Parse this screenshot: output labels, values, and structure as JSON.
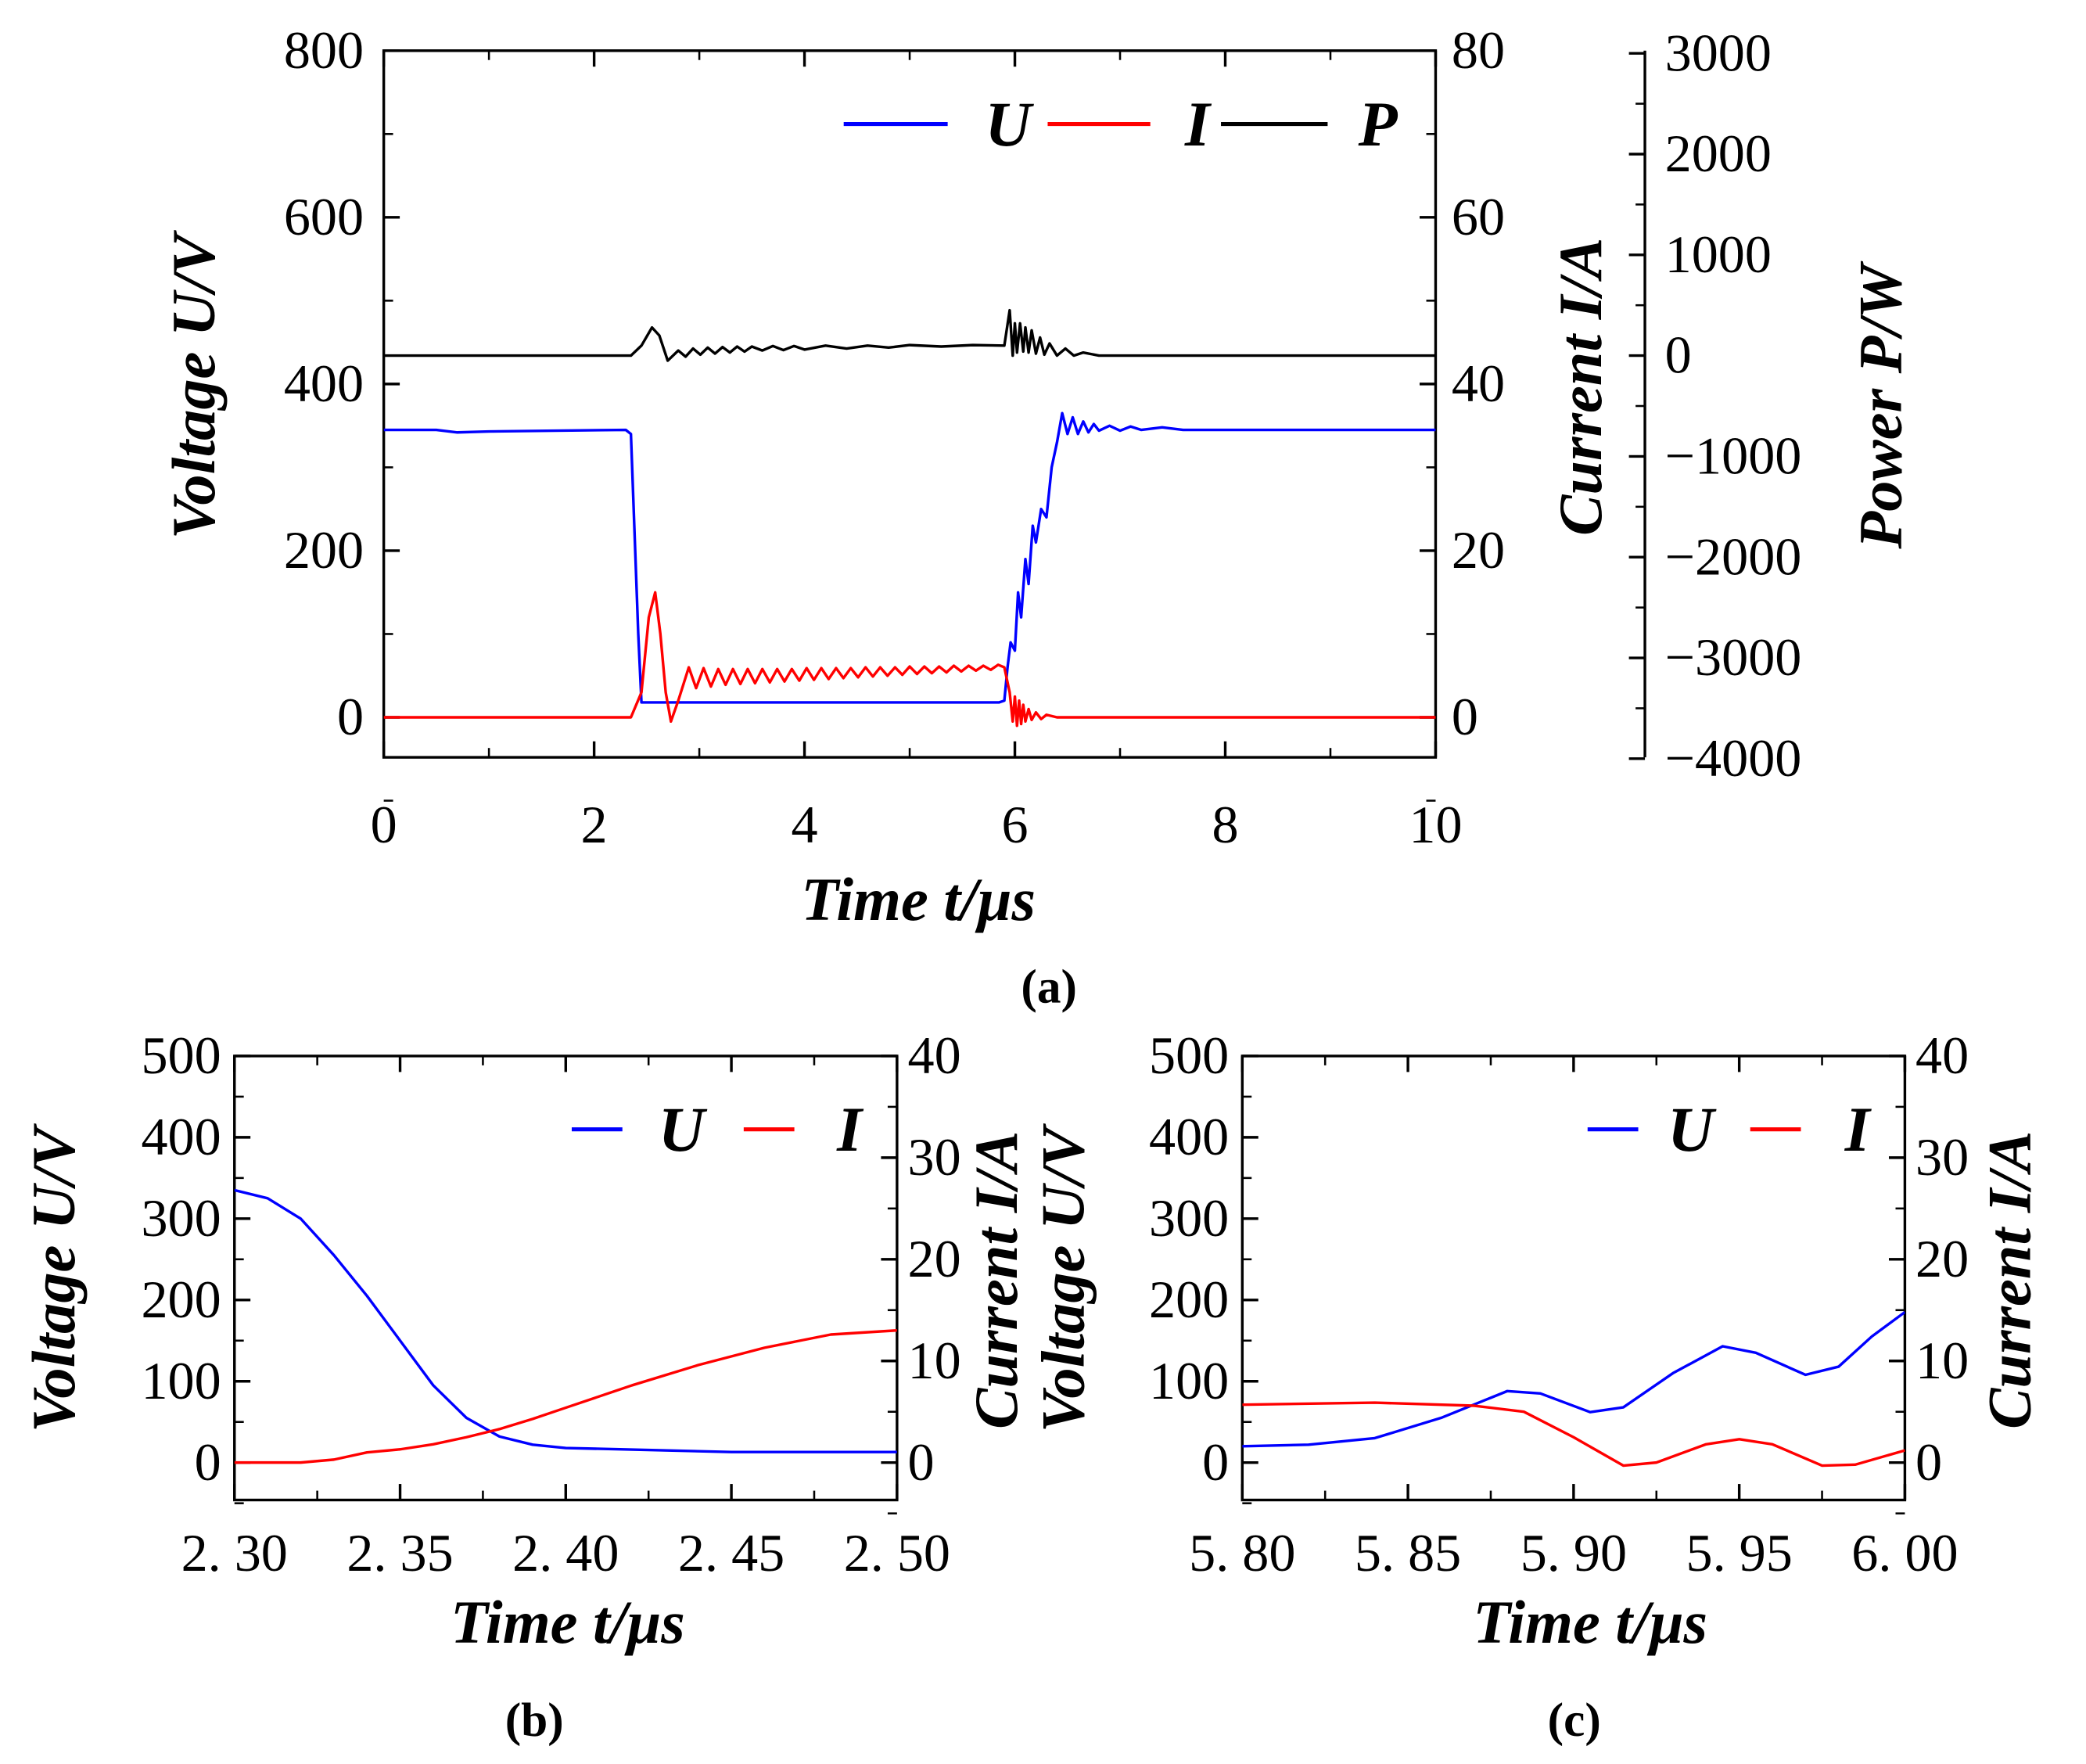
{
  "chart_data": [
    {
      "panel": "a",
      "caption": "(a)",
      "type": "line",
      "xlabel": "Time  t/μs",
      "xlim": [
        0,
        10
      ],
      "xticks": [
        "0",
        "2",
        "4",
        "6",
        "8",
        "10"
      ],
      "ylabel_left": "Voltage  U/V",
      "ylim_left": [
        -48,
        800
      ],
      "yticks_left": [
        "0",
        "200",
        "400",
        "600",
        "800"
      ],
      "ylabel_right": "Current  I/A",
      "ylim_right": [
        -4.8,
        80
      ],
      "yticks_right": [
        "0",
        "20",
        "40",
        "60",
        "80"
      ],
      "ylabel_right2": "Power  P/W",
      "ylim_right2": [
        -4000,
        3000
      ],
      "yticks_right2": [
        "-4000",
        "-3000",
        "-2000",
        "-1000",
        "0",
        "1000",
        "2000",
        "3000"
      ],
      "legend": "top-right",
      "grid": false,
      "series": [
        {
          "name": "U",
          "axis": "left",
          "color": "#0000ff",
          "points": [
            [
              0,
              345
            ],
            [
              0.5,
              345
            ],
            [
              0.7,
              342
            ],
            [
              1,
              343
            ],
            [
              2.3,
              345
            ],
            [
              2.35,
              340
            ],
            [
              2.42,
              100
            ],
            [
              2.45,
              18
            ],
            [
              5.85,
              18
            ],
            [
              5.9,
              20
            ],
            [
              5.93,
              60
            ],
            [
              5.96,
              90
            ],
            [
              6.0,
              80
            ],
            [
              6.03,
              150
            ],
            [
              6.06,
              120
            ],
            [
              6.1,
              190
            ],
            [
              6.13,
              160
            ],
            [
              6.17,
              230
            ],
            [
              6.2,
              210
            ],
            [
              6.25,
              250
            ],
            [
              6.3,
              240
            ],
            [
              6.35,
              300
            ],
            [
              6.4,
              330
            ],
            [
              6.45,
              365
            ],
            [
              6.5,
              340
            ],
            [
              6.55,
              360
            ],
            [
              6.6,
              340
            ],
            [
              6.65,
              355
            ],
            [
              6.7,
              342
            ],
            [
              6.75,
              352
            ],
            [
              6.8,
              344
            ],
            [
              6.9,
              350
            ],
            [
              7.0,
              344
            ],
            [
              7.1,
              349
            ],
            [
              7.2,
              345
            ],
            [
              7.4,
              348
            ],
            [
              7.6,
              345
            ],
            [
              10,
              345
            ]
          ]
        },
        {
          "name": "I",
          "axis": "right",
          "color": "#ff0000",
          "points": [
            [
              0,
              0
            ],
            [
              2.35,
              0
            ],
            [
              2.45,
              3
            ],
            [
              2.52,
              12
            ],
            [
              2.58,
              15
            ],
            [
              2.63,
              10
            ],
            [
              2.68,
              3
            ],
            [
              2.73,
              -0.5
            ],
            [
              2.8,
              2
            ],
            [
              2.9,
              6
            ],
            [
              2.97,
              3.5
            ],
            [
              3.04,
              5.9
            ],
            [
              3.11,
              3.7
            ],
            [
              3.18,
              5.8
            ],
            [
              3.25,
              3.9
            ],
            [
              3.32,
              5.8
            ],
            [
              3.39,
              4.0
            ],
            [
              3.46,
              5.8
            ],
            [
              3.53,
              4.1
            ],
            [
              3.6,
              5.8
            ],
            [
              3.67,
              4.2
            ],
            [
              3.74,
              5.8
            ],
            [
              3.81,
              4.3
            ],
            [
              3.88,
              5.8
            ],
            [
              3.95,
              4.4
            ],
            [
              4.02,
              5.9
            ],
            [
              4.09,
              4.5
            ],
            [
              4.16,
              5.9
            ],
            [
              4.23,
              4.6
            ],
            [
              4.3,
              5.9
            ],
            [
              4.37,
              4.7
            ],
            [
              4.44,
              5.9
            ],
            [
              4.51,
              4.8
            ],
            [
              4.58,
              6.0
            ],
            [
              4.65,
              4.9
            ],
            [
              4.72,
              6.0
            ],
            [
              4.79,
              5.0
            ],
            [
              4.86,
              6.0
            ],
            [
              4.93,
              5.1
            ],
            [
              5.0,
              6.1
            ],
            [
              5.07,
              5.2
            ],
            [
              5.14,
              6.1
            ],
            [
              5.21,
              5.3
            ],
            [
              5.28,
              6.1
            ],
            [
              5.35,
              5.4
            ],
            [
              5.42,
              6.2
            ],
            [
              5.49,
              5.5
            ],
            [
              5.56,
              6.2
            ],
            [
              5.63,
              5.6
            ],
            [
              5.7,
              6.2
            ],
            [
              5.77,
              5.7
            ],
            [
              5.84,
              6.3
            ],
            [
              5.9,
              6.0
            ],
            [
              5.95,
              3
            ],
            [
              5.98,
              -0.5
            ],
            [
              6.0,
              2.5
            ],
            [
              6.02,
              -1
            ],
            [
              6.04,
              2
            ],
            [
              6.06,
              -0.8
            ],
            [
              6.08,
              1.5
            ],
            [
              6.1,
              -0.5
            ],
            [
              6.13,
              1
            ],
            [
              6.16,
              -0.3
            ],
            [
              6.2,
              0.6
            ],
            [
              6.25,
              -0.2
            ],
            [
              6.3,
              0.3
            ],
            [
              6.4,
              0
            ],
            [
              10,
              0
            ]
          ]
        },
        {
          "name": "P",
          "axis": "right2",
          "color": "#000000",
          "points": [
            [
              0,
              0
            ],
            [
              2.35,
              0
            ],
            [
              2.45,
              100
            ],
            [
              2.55,
              280
            ],
            [
              2.62,
              200
            ],
            [
              2.7,
              -50
            ],
            [
              2.8,
              50
            ],
            [
              2.87,
              -10
            ],
            [
              2.94,
              70
            ],
            [
              3.01,
              10
            ],
            [
              3.08,
              80
            ],
            [
              3.15,
              20
            ],
            [
              3.22,
              85
            ],
            [
              3.29,
              30
            ],
            [
              3.36,
              90
            ],
            [
              3.43,
              40
            ],
            [
              3.5,
              90
            ],
            [
              3.6,
              50
            ],
            [
              3.7,
              95
            ],
            [
              3.8,
              55
            ],
            [
              3.9,
              95
            ],
            [
              4.0,
              60
            ],
            [
              4.2,
              100
            ],
            [
              4.4,
              70
            ],
            [
              4.6,
              100
            ],
            [
              4.8,
              80
            ],
            [
              5.0,
              105
            ],
            [
              5.3,
              90
            ],
            [
              5.6,
              105
            ],
            [
              5.9,
              100
            ],
            [
              5.95,
              450
            ],
            [
              5.98,
              0
            ],
            [
              6.0,
              320
            ],
            [
              6.02,
              30
            ],
            [
              6.05,
              320
            ],
            [
              6.08,
              40
            ],
            [
              6.1,
              280
            ],
            [
              6.13,
              30
            ],
            [
              6.16,
              250
            ],
            [
              6.2,
              20
            ],
            [
              6.24,
              180
            ],
            [
              6.28,
              10
            ],
            [
              6.33,
              120
            ],
            [
              6.4,
              0
            ],
            [
              6.48,
              70
            ],
            [
              6.56,
              0
            ],
            [
              6.65,
              30
            ],
            [
              6.8,
              0
            ],
            [
              10,
              0
            ]
          ]
        }
      ]
    },
    {
      "panel": "b",
      "caption": "(b)",
      "type": "line",
      "xlabel": "Time  t/μs",
      "xlim": [
        2.3,
        2.5
      ],
      "xticks": [
        "2. 30",
        "2. 35",
        "2. 40",
        "2. 45",
        "2. 50"
      ],
      "ylabel_left": "Voltage  U/V",
      "ylim_left": [
        -46,
        500
      ],
      "yticks_left": [
        "0",
        "100",
        "200",
        "300",
        "400",
        "500"
      ],
      "ylabel_right": "Current  I/A",
      "ylim_right": [
        -3.68,
        40
      ],
      "yticks_right": [
        "0",
        "10",
        "20",
        "30",
        "40"
      ],
      "legend": "top-right",
      "grid": false,
      "series": [
        {
          "name": "U",
          "axis": "left",
          "color": "#0000ff",
          "points": [
            [
              2.3,
              335
            ],
            [
              2.31,
              325
            ],
            [
              2.32,
              300
            ],
            [
              2.33,
              255
            ],
            [
              2.34,
              205
            ],
            [
              2.35,
              150
            ],
            [
              2.36,
              95
            ],
            [
              2.37,
              55
            ],
            [
              2.38,
              32
            ],
            [
              2.39,
              22
            ],
            [
              2.4,
              18
            ],
            [
              2.42,
              16
            ],
            [
              2.45,
              13
            ],
            [
              2.5,
              13
            ]
          ]
        },
        {
          "name": "I",
          "axis": "right",
          "color": "#ff0000",
          "points": [
            [
              2.3,
              0
            ],
            [
              2.32,
              0
            ],
            [
              2.33,
              0.3
            ],
            [
              2.34,
              1
            ],
            [
              2.35,
              1.3
            ],
            [
              2.36,
              1.8
            ],
            [
              2.37,
              2.5
            ],
            [
              2.38,
              3.3
            ],
            [
              2.39,
              4.3
            ],
            [
              2.4,
              5.4
            ],
            [
              2.42,
              7.6
            ],
            [
              2.44,
              9.6
            ],
            [
              2.46,
              11.3
            ],
            [
              2.48,
              12.6
            ],
            [
              2.5,
              13
            ]
          ]
        }
      ]
    },
    {
      "panel": "c",
      "caption": "(c)",
      "type": "line",
      "xlabel": "Time  t/μs",
      "xlim": [
        5.8,
        6.0
      ],
      "xticks": [
        "5. 80",
        "5. 85",
        "5. 90",
        "5. 95",
        "6. 00"
      ],
      "ylabel_left": "Voltage  U/V",
      "ylim_left": [
        -46,
        500
      ],
      "yticks_left": [
        "0",
        "100",
        "200",
        "300",
        "400",
        "500"
      ],
      "ylabel_right": "Current  I/A",
      "ylim_right": [
        -3.68,
        40
      ],
      "yticks_right": [
        "0",
        "10",
        "20",
        "30",
        "40"
      ],
      "legend": "top-right",
      "grid": false,
      "series": [
        {
          "name": "U",
          "axis": "left",
          "color": "#0000ff",
          "points": [
            [
              5.8,
              20
            ],
            [
              5.82,
              22
            ],
            [
              5.84,
              30
            ],
            [
              5.86,
              55
            ],
            [
              5.88,
              88
            ],
            [
              5.89,
              85
            ],
            [
              5.905,
              62
            ],
            [
              5.915,
              68
            ],
            [
              5.93,
              110
            ],
            [
              5.945,
              143
            ],
            [
              5.955,
              135
            ],
            [
              5.97,
              108
            ],
            [
              5.98,
              118
            ],
            [
              5.99,
              155
            ],
            [
              6.0,
              185
            ]
          ]
        },
        {
          "name": "I",
          "axis": "right",
          "color": "#ff0000",
          "points": [
            [
              5.8,
              5.7
            ],
            [
              5.84,
              5.9
            ],
            [
              5.87,
              5.6
            ],
            [
              5.885,
              5.0
            ],
            [
              5.9,
              2.5
            ],
            [
              5.915,
              -0.3
            ],
            [
              5.925,
              0
            ],
            [
              5.94,
              1.8
            ],
            [
              5.95,
              2.3
            ],
            [
              5.96,
              1.8
            ],
            [
              5.975,
              -0.3
            ],
            [
              5.985,
              -0.2
            ],
            [
              6.0,
              1.2
            ]
          ]
        }
      ]
    }
  ]
}
